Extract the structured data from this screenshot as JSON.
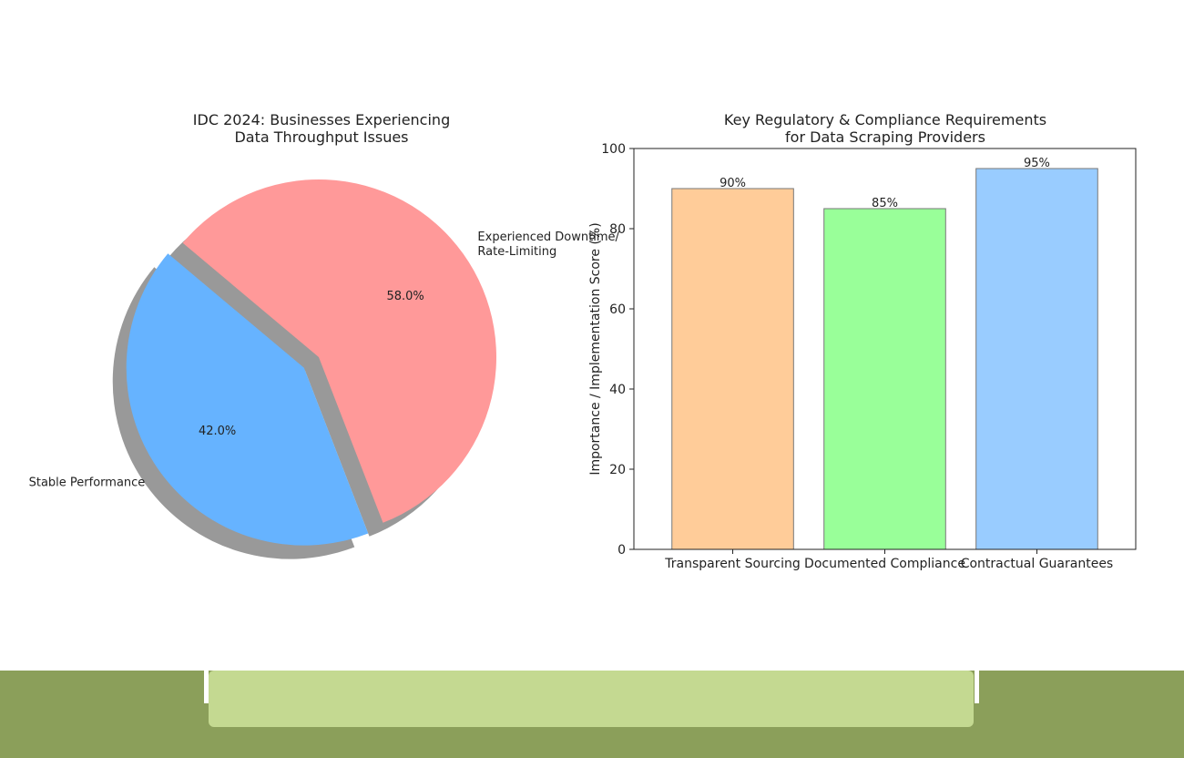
{
  "chart_data": [
    {
      "type": "pie",
      "title": [
        "IDC 2024: Businesses Experiencing",
        "Data Throughput Issues"
      ],
      "slices": [
        {
          "label": [
            "Stable Performance"
          ],
          "value": 42.0,
          "pct_label": "42.0%",
          "color": "#66b3ff",
          "explode": true
        },
        {
          "label": [
            "Experienced Downtime/",
            "Rate-Limiting"
          ],
          "value": 58.0,
          "pct_label": "58.0%",
          "color": "#ff9999",
          "explode": false
        }
      ],
      "shadow": true
    },
    {
      "type": "bar",
      "title": [
        "Key Regulatory & Compliance Requirements",
        "for Data Scraping Providers"
      ],
      "categories": [
        "Transparent Sourcing",
        "Documented Compliance",
        "Contractual Guarantees"
      ],
      "values": [
        90,
        85,
        95
      ],
      "value_labels": [
        "90%",
        "85%",
        "95%"
      ],
      "colors": [
        "#ffcc99",
        "#99ff99",
        "#99ccff"
      ],
      "ylabel": "Importance / Implementation Score (%)",
      "xlabel": "",
      "ylim": [
        0,
        100
      ],
      "yticks": [
        0,
        20,
        40,
        60,
        80,
        100
      ]
    }
  ],
  "footer": {
    "band_color": "#8b9f5a",
    "panel_color": "#c4d991"
  }
}
